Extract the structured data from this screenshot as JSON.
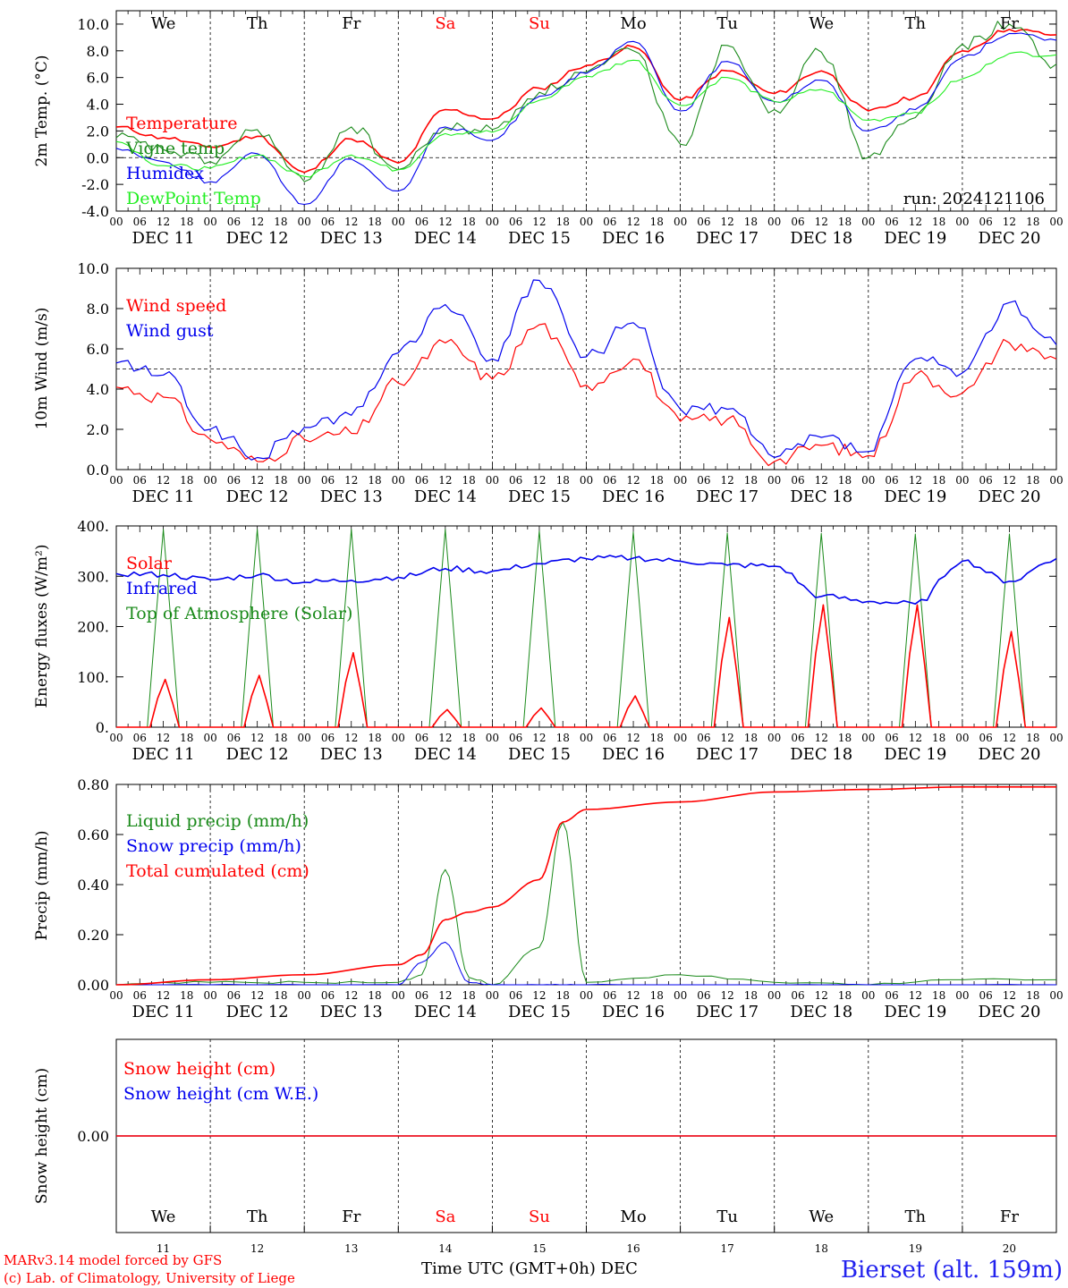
{
  "colors": {
    "red": "#ff0000",
    "dark_green": "#1a8a1a",
    "blue": "#0000ee",
    "light_green": "#22ee22",
    "axis": "#000000",
    "footer_blue": "#2222ee"
  },
  "shared": {
    "hour_ticks": [
      "00",
      "06",
      "12",
      "18"
    ],
    "last_hour": "00",
    "dates": [
      "DEC 11",
      "DEC 12",
      "DEC 13",
      "DEC 14",
      "DEC 15",
      "DEC 16",
      "DEC 17",
      "DEC 18",
      "DEC 19",
      "DEC 20"
    ],
    "weekdays": [
      "We",
      "Th",
      "Fr",
      "Sa",
      "Su",
      "Mo",
      "Tu",
      "We",
      "Th",
      "Fr"
    ],
    "weekend_color_indices": [
      3,
      4
    ],
    "day_numbers": [
      "11",
      "12",
      "13",
      "14",
      "15",
      "16",
      "17",
      "18",
      "19",
      "20"
    ]
  },
  "chart_data": [
    {
      "type": "line",
      "ylabel": "2m Temp. (°C)",
      "ylim": [
        -4,
        11
      ],
      "yticks": [
        "-4.0",
        "-2.0",
        "0.0",
        "2.0",
        "4.0",
        "6.0",
        "8.0",
        "10.0"
      ],
      "ytick_values": [
        -4,
        -2,
        0,
        2,
        4,
        6,
        8,
        10
      ],
      "ref_line": 0,
      "annotation": "run: 2024121106",
      "x_days": [
        0,
        0.5,
        1,
        1.5,
        2,
        2.5,
        3,
        3.5,
        4,
        4.5,
        5,
        5.5,
        6,
        6.5,
        7,
        7.5,
        8,
        8.5,
        9,
        9.5,
        10
      ],
      "series": [
        {
          "name": "Temperature",
          "color": "red",
          "values": [
            2.3,
            1.5,
            0.8,
            1.6,
            -1.1,
            1.4,
            -0.4,
            3.6,
            2.9,
            5.2,
            6.9,
            8.3,
            4.3,
            6.5,
            4.8,
            6.5,
            3.5,
            4.5,
            8.0,
            9.6,
            9.2
          ]
        },
        {
          "name": "Vigne temp",
          "color": "dark_green",
          "values": [
            1.5,
            0.6,
            -0.3,
            2.1,
            -1.8,
            2.3,
            -0.9,
            2.2,
            2.1,
            4.9,
            6.4,
            8.0,
            1.0,
            8.4,
            3.6,
            7.9,
            0.0,
            3.0,
            8.5,
            10.0,
            7.0
          ]
        },
        {
          "name": "Humidex",
          "color": "blue",
          "values": [
            0.7,
            -0.3,
            -1.8,
            0.3,
            -3.5,
            -0.1,
            -2.5,
            2.3,
            1.3,
            4.6,
            6.3,
            8.7,
            3.5,
            7.2,
            4.2,
            5.8,
            2.0,
            3.6,
            7.5,
            9.3,
            8.8
          ]
        },
        {
          "name": "DewPoint Temp",
          "color": "light_green",
          "values": [
            1.2,
            -0.6,
            -0.8,
            0.2,
            -1.4,
            0.2,
            -0.9,
            1.8,
            1.9,
            4.3,
            6.1,
            7.3,
            3.9,
            6.0,
            4.2,
            5.1,
            2.8,
            3.4,
            5.9,
            7.8,
            7.7
          ]
        }
      ]
    },
    {
      "type": "line",
      "ylabel": "10m Wind (m/s)",
      "ylim": [
        0,
        10
      ],
      "yticks": [
        "0.0",
        "2.0",
        "4.0",
        "6.0",
        "8.0",
        "10.0"
      ],
      "ytick_values": [
        0,
        2,
        4,
        6,
        8,
        10
      ],
      "ref_line": 5,
      "x_days": [
        0,
        0.5,
        1,
        1.5,
        2,
        2.5,
        3,
        3.5,
        4,
        4.5,
        5,
        5.5,
        6,
        6.5,
        7,
        7.5,
        8,
        8.5,
        9,
        9.5,
        10
      ],
      "series": [
        {
          "name": "Wind speed",
          "color": "red",
          "values": [
            4.1,
            3.6,
            1.5,
            0.4,
            1.5,
            1.8,
            4.3,
            6.3,
            4.5,
            7.2,
            4.2,
            5.5,
            2.4,
            2.5,
            0.4,
            1.2,
            0.7,
            4.7,
            3.8,
            6.3,
            5.5
          ]
        },
        {
          "name": "Wind gust",
          "color": "blue",
          "values": [
            5.3,
            4.7,
            2.0,
            0.6,
            2.1,
            2.7,
            5.8,
            8.2,
            5.5,
            9.4,
            5.6,
            7.3,
            3.0,
            3.0,
            0.6,
            1.6,
            0.9,
            5.5,
            4.8,
            8.3,
            6.2
          ]
        }
      ]
    },
    {
      "type": "line",
      "ylabel": "Energy fluxes (W/m²)",
      "ylim": [
        0,
        400
      ],
      "yticks": [
        "0.",
        "100.",
        "200.",
        "300.",
        "400."
      ],
      "ytick_values": [
        0,
        100,
        200,
        300,
        400
      ],
      "x_days": [
        0,
        0.5,
        1,
        1.5,
        2,
        2.5,
        3,
        3.5,
        4,
        4.5,
        5,
        5.5,
        6,
        6.5,
        7,
        7.5,
        8,
        8.5,
        9,
        9.5,
        10
      ],
      "series": [
        {
          "name": "Solar",
          "color": "red",
          "peaks_at_noon": [
            95,
            103,
            148,
            35,
            38,
            62,
            218,
            243,
            243,
            190
          ]
        },
        {
          "name": "Infrared",
          "color": "blue",
          "values": [
            305,
            303,
            293,
            302,
            288,
            292,
            298,
            315,
            310,
            325,
            335,
            336,
            330,
            322,
            320,
            260,
            250,
            245,
            330,
            290,
            335
          ]
        },
        {
          "name": "Top of Atmosphere (Solar)",
          "color": "dark_green",
          "peaks_at_noon": [
            393,
            393,
            393,
            393,
            390,
            388,
            386,
            385,
            384,
            384
          ]
        }
      ]
    },
    {
      "type": "line",
      "ylabel": "Precip (mm/h)",
      "ylim": [
        0,
        0.8
      ],
      "yticks": [
        "0.00",
        "0.20",
        "0.40",
        "0.60",
        "0.80"
      ],
      "ytick_values": [
        0,
        0.2,
        0.4,
        0.6,
        0.8
      ],
      "x_days": [
        0,
        1,
        2,
        3,
        3.25,
        3.5,
        3.75,
        4,
        4.5,
        4.75,
        5,
        6,
        7,
        8,
        9,
        10
      ],
      "series": [
        {
          "name": "Liquid precip (mm/h)",
          "color": "dark_green",
          "values": [
            0,
            0.01,
            0.01,
            0.01,
            0.04,
            0.46,
            0.03,
            0.0,
            0.15,
            0.65,
            0.01,
            0.04,
            0.01,
            0.0,
            0.02,
            0.02
          ]
        },
        {
          "name": "Snow precip (mm/h)",
          "color": "blue",
          "values": [
            0,
            0,
            0,
            0,
            0.09,
            0.17,
            0.01,
            0,
            0,
            0,
            0,
            0,
            0,
            0,
            0,
            0
          ]
        },
        {
          "name": "Total cumulated (cm)",
          "color": "red",
          "values": [
            0,
            0.02,
            0.04,
            0.08,
            0.12,
            0.26,
            0.29,
            0.31,
            0.42,
            0.65,
            0.7,
            0.73,
            0.77,
            0.78,
            0.79,
            0.79
          ]
        }
      ]
    },
    {
      "type": "line",
      "ylabel": "Snow height (cm)",
      "yticks": [
        "0.00"
      ],
      "ytick_values": [
        0
      ],
      "series": [
        {
          "name": "Snow height (cm)",
          "color": "red",
          "values": [
            0,
            0
          ]
        },
        {
          "name": "Snow height (cm W.E.)",
          "color": "blue",
          "values": [
            0,
            0
          ]
        }
      ]
    }
  ],
  "footer": {
    "model_line1": "MARv3.14 model forced by GFS",
    "model_line2": "(c) Lab. of Climatology, University of Liege",
    "xlabel": "Time UTC (GMT+0h) DEC",
    "station": "Bierset (alt. 159m)"
  }
}
